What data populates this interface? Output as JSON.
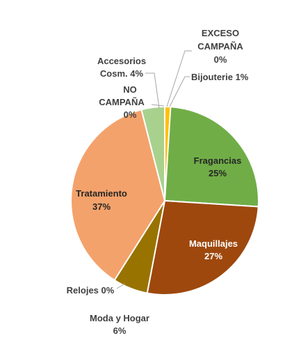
{
  "chart_data": {
    "type": "pie",
    "title": "",
    "slices": [
      {
        "label": "Bijouterie",
        "value": 1,
        "percent_label": "1%",
        "color": "#FFC000"
      },
      {
        "label": "Fragancias",
        "value": 25,
        "percent_label": "25%",
        "color": "#70AD47"
      },
      {
        "label": "Maquillajes",
        "value": 27,
        "percent_label": "27%",
        "color": "#9E480E"
      },
      {
        "label": "Moda y Hogar",
        "value": 6,
        "percent_label": "6%",
        "color": "#997300"
      },
      {
        "label": "Relojes",
        "value": 0,
        "percent_label": "0%",
        "color": "#636363"
      },
      {
        "label": "Tratamiento",
        "value": 37,
        "percent_label": "37%",
        "color": "#F4A26B"
      },
      {
        "label": "NO CAMPAÑA",
        "value": 0,
        "percent_label": "0%",
        "color": "#264478"
      },
      {
        "label": "Accesorios Cosm.",
        "value": 4,
        "percent_label": "4%",
        "color": "#A9D18E"
      },
      {
        "label": "EXCESO CAMPAÑA",
        "value": 0,
        "percent_label": "0%",
        "color": "#5B9BD5"
      }
    ],
    "label_texts": {
      "bijouterie": "Bijouterie 1%",
      "fragancias_name": "Fragancias",
      "fragancias_pct": "25%",
      "maquillajes_name": "Maquillajes",
      "maquillajes_pct": "27%",
      "moda_line1": "Moda y Hogar",
      "moda_line2": "6%",
      "relojes": "Relojes 0%",
      "tratamiento_name": "Tratamiento",
      "tratamiento_pct": "37%",
      "no_campana_line1": "NO",
      "no_campana_line2": "CAMPAÑA",
      "no_campana_line3": "0%",
      "accesorios_line1": "Accesorios",
      "accesorios_line2": "Cosm. 4%",
      "exceso_line1": "EXCESO",
      "exceso_line2": "CAMPAÑA",
      "exceso_line3": "0%"
    },
    "legend": "none",
    "data_label_colors": {
      "outside": "#404040",
      "inside_dark": "#262626",
      "inside_light": "#ffffff"
    }
  }
}
